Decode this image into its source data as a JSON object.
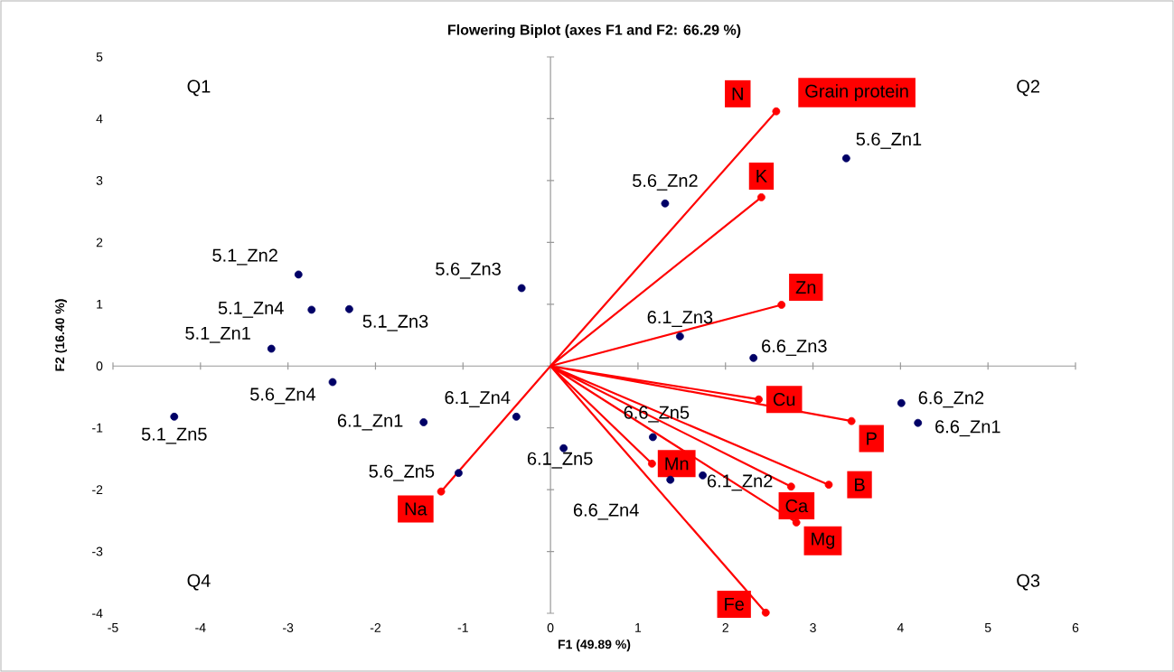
{
  "chart_data": {
    "type": "scatter",
    "title": "Flowering Biplot (axes F1 and F2: 66.29 %)",
    "xlabel": "F1 (49.89 %)",
    "ylabel": "F2 (16.40 %)",
    "xlim": [
      -5,
      6
    ],
    "ylim": [
      -4,
      5
    ],
    "xticks": [
      -5,
      -4,
      -3,
      -2,
      -1,
      0,
      1,
      2,
      3,
      4,
      5,
      6
    ],
    "yticks": [
      -4,
      -3,
      -2,
      -1,
      0,
      1,
      2,
      3,
      4,
      5
    ],
    "series": [
      {
        "type": "scatter",
        "color": "#000066",
        "marker": "circle",
        "x": [
          3.38,
          1.31,
          -2.88,
          -0.33,
          -2.73,
          -2.3,
          -3.19,
          1.48,
          2.32,
          -2.49,
          -4.3,
          -1.45,
          -0.39,
          4.01,
          4.2,
          -1.05,
          0.15,
          1.17,
          1.74,
          1.37
        ],
        "values": [
          3.36,
          2.63,
          1.48,
          1.26,
          0.91,
          0.92,
          0.28,
          0.48,
          0.13,
          -0.26,
          -0.82,
          -0.91,
          -0.82,
          -0.6,
          -0.92,
          -1.73,
          -1.33,
          -1.15,
          -1.77,
          -1.84
        ]
      },
      {
        "type": "scatter",
        "color": "#ff0000",
        "marker": "circle",
        "x": [
          2.58,
          2.41,
          2.64,
          2.38,
          3.44,
          1.16,
          3.18,
          2.75,
          2.81,
          2.46,
          -1.25
        ],
        "values": [
          4.12,
          2.73,
          0.99,
          -0.54,
          -0.89,
          -1.58,
          -1.92,
          -1.95,
          -2.53,
          -3.99,
          -2.03
        ]
      },
      {
        "type": "line",
        "color": "#ff0000",
        "marker": "none",
        "x": [
          0,
          2.58,
          0,
          2.41,
          0,
          2.64,
          0,
          2.38,
          0,
          3.44,
          0,
          1.16,
          0,
          3.18,
          0,
          2.75,
          0,
          2.81,
          0,
          2.46,
          0,
          -1.25
        ],
        "values": [
          0,
          4.12,
          0,
          2.73,
          0,
          0.99,
          0,
          -0.54,
          0,
          -0.89,
          0,
          -1.58,
          0,
          -1.92,
          0,
          -1.95,
          0,
          -2.53,
          0,
          -3.99,
          0,
          -2.03
        ]
      }
    ],
    "annotations": [
      {
        "text": "5.6_Zn1",
        "x": 3.38,
        "y": 3.36
      },
      {
        "text": "5.6_Zn2",
        "x": 1.31,
        "y": 2.63
      },
      {
        "text": "5.1_Zn2",
        "x": -2.88,
        "y": 1.48
      },
      {
        "text": "5.6_Zn3",
        "x": -0.33,
        "y": 1.26
      },
      {
        "text": "5.1_Zn4",
        "x": -2.73,
        "y": 0.91
      },
      {
        "text": "5.1_Zn3",
        "x": -2.3,
        "y": 0.92
      },
      {
        "text": "5.1_Zn1",
        "x": -3.19,
        "y": 0.28
      },
      {
        "text": "6.1_Zn3",
        "x": 1.48,
        "y": 0.48
      },
      {
        "text": "6.6_Zn3",
        "x": 2.32,
        "y": 0.13
      },
      {
        "text": "5.6_Zn4",
        "x": -2.49,
        "y": -0.26
      },
      {
        "text": "5.1_Zn5",
        "x": -4.3,
        "y": -0.82
      },
      {
        "text": "6.1_Zn1",
        "x": -1.45,
        "y": -0.91
      },
      {
        "text": "6.1_Zn4",
        "x": -0.39,
        "y": -0.82
      },
      {
        "text": "6.6_Zn2",
        "x": 4.01,
        "y": -0.6
      },
      {
        "text": "6.6_Zn1",
        "x": 4.2,
        "y": -0.92
      },
      {
        "text": "5.6_Zn5",
        "x": -1.05,
        "y": -1.73
      },
      {
        "text": "6.1_Zn5",
        "x": 0.15,
        "y": -1.33
      },
      {
        "text": "6.6_Zn5",
        "x": 1.17,
        "y": -1.15
      },
      {
        "text": "6.1_Zn2",
        "x": 1.74,
        "y": -1.77
      },
      {
        "text": "6.6_Zn4",
        "x": 1.37,
        "y": -1.84
      },
      {
        "text": "N",
        "x": 2.58,
        "y": 4.12
      },
      {
        "text": "Grain protein",
        "x": 2.58,
        "y": 4.12
      },
      {
        "text": "K",
        "x": 2.41,
        "y": 2.73
      },
      {
        "text": "Zn",
        "x": 2.64,
        "y": 0.99
      },
      {
        "text": "Cu",
        "x": 2.38,
        "y": -0.54
      },
      {
        "text": "P",
        "x": 3.44,
        "y": -0.89
      },
      {
        "text": "Mn",
        "x": 1.16,
        "y": -1.58
      },
      {
        "text": "B",
        "x": 3.18,
        "y": -1.92
      },
      {
        "text": "Ca",
        "x": 2.75,
        "y": -1.95
      },
      {
        "text": "Mg",
        "x": 2.81,
        "y": -2.53
      },
      {
        "text": "Fe",
        "x": 2.46,
        "y": -3.99
      },
      {
        "text": "Na",
        "x": -1.25,
        "y": -2.03
      },
      "Q1",
      "Q2",
      "Q3",
      "Q4"
    ]
  }
}
